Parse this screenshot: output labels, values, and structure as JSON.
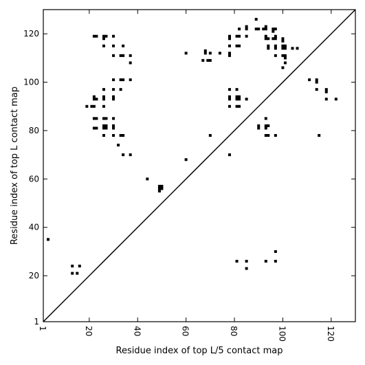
{
  "chart_data": {
    "type": "scatter",
    "title": "",
    "xlabel": "Residue index of top L/5 contact map",
    "ylabel": "Residue index of top L contact map",
    "xlim": [
      1,
      130
    ],
    "ylim": [
      1,
      130
    ],
    "xticks": [
      1,
      20,
      40,
      60,
      80,
      100,
      120
    ],
    "yticks": [
      1,
      20,
      40,
      60,
      80,
      100,
      120
    ],
    "xtick_labels": [
      "1",
      "20",
      "40",
      "60",
      "80",
      "100",
      "120"
    ],
    "ytick_labels": [
      "1",
      "20",
      "40",
      "60",
      "80",
      "100",
      "120"
    ],
    "diagonal": true,
    "marker": "square",
    "color": "#000000",
    "series": [
      {
        "points": [
          [
            13,
            24
          ],
          [
            16,
            24
          ],
          [
            13,
            21
          ],
          [
            15,
            21
          ],
          [
            81,
            26
          ],
          [
            85,
            26
          ],
          [
            93,
            26
          ],
          [
            97,
            26
          ],
          [
            97,
            30
          ],
          [
            85,
            23
          ],
          [
            49,
            57
          ],
          [
            50,
            57
          ],
          [
            49,
            56
          ],
          [
            50,
            56
          ],
          [
            49,
            55
          ],
          [
            44,
            60
          ],
          [
            60,
            68
          ],
          [
            78,
            70
          ],
          [
            34,
            70
          ],
          [
            37,
            70
          ],
          [
            32,
            74
          ],
          [
            33,
            78
          ],
          [
            34,
            78
          ],
          [
            26,
            78
          ],
          [
            30,
            78
          ],
          [
            70,
            78
          ],
          [
            22,
            81
          ],
          [
            23,
            81
          ],
          [
            26,
            81
          ],
          [
            27,
            81
          ],
          [
            30,
            81
          ],
          [
            26,
            82
          ],
          [
            27,
            82
          ],
          [
            30,
            82
          ],
          [
            22,
            85
          ],
          [
            23,
            85
          ],
          [
            26,
            85
          ],
          [
            27,
            85
          ],
          [
            30,
            85
          ],
          [
            19,
            90
          ],
          [
            21,
            90
          ],
          [
            22,
            90
          ],
          [
            26,
            90
          ],
          [
            22,
            93
          ],
          [
            23,
            93
          ],
          [
            26,
            93
          ],
          [
            30,
            93
          ],
          [
            22,
            94
          ],
          [
            26,
            94
          ],
          [
            30,
            94
          ],
          [
            26,
            97
          ],
          [
            30,
            97
          ],
          [
            33,
            97
          ],
          [
            30,
            101
          ],
          [
            33,
            101
          ],
          [
            34,
            101
          ],
          [
            37,
            101
          ],
          [
            37,
            108
          ],
          [
            30,
            111
          ],
          [
            33,
            111
          ],
          [
            34,
            111
          ],
          [
            37,
            111
          ],
          [
            26,
            115
          ],
          [
            30,
            115
          ],
          [
            34,
            115
          ],
          [
            22,
            119
          ],
          [
            23,
            119
          ],
          [
            26,
            119
          ],
          [
            27,
            119
          ],
          [
            30,
            119
          ],
          [
            26,
            118
          ],
          [
            60,
            112
          ],
          [
            68,
            112
          ],
          [
            70,
            112
          ],
          [
            74,
            112
          ],
          [
            68,
            113
          ],
          [
            78,
            111
          ],
          [
            78,
            112
          ],
          [
            67,
            109
          ],
          [
            69,
            109
          ],
          [
            70,
            109
          ],
          [
            78,
            115
          ],
          [
            81,
            115
          ],
          [
            82,
            115
          ],
          [
            78,
            118
          ],
          [
            78,
            119
          ],
          [
            81,
            119
          ],
          [
            82,
            119
          ],
          [
            85,
            119
          ],
          [
            82,
            122
          ],
          [
            85,
            122
          ],
          [
            85,
            123
          ],
          [
            89,
            122
          ],
          [
            90,
            122
          ],
          [
            89,
            126
          ],
          [
            92,
            122
          ],
          [
            93,
            122
          ],
          [
            93,
            123
          ],
          [
            96,
            122
          ],
          [
            97,
            122
          ],
          [
            96,
            121
          ],
          [
            93,
            119
          ],
          [
            93,
            118
          ],
          [
            94,
            118
          ],
          [
            96,
            118
          ],
          [
            97,
            118
          ],
          [
            97,
            119
          ],
          [
            94,
            115
          ],
          [
            94,
            114
          ],
          [
            97,
            115
          ],
          [
            97,
            114
          ],
          [
            100,
            118
          ],
          [
            100,
            117
          ],
          [
            100,
            115
          ],
          [
            101,
            115
          ],
          [
            101,
            114
          ],
          [
            100,
            114
          ],
          [
            104,
            114
          ],
          [
            106,
            114
          ],
          [
            97,
            111
          ],
          [
            100,
            111
          ],
          [
            101,
            111
          ],
          [
            101,
            110
          ],
          [
            101,
            108
          ],
          [
            100,
            106
          ],
          [
            78,
            97
          ],
          [
            81,
            97
          ],
          [
            78,
            94
          ],
          [
            78,
            93
          ],
          [
            81,
            94
          ],
          [
            82,
            94
          ],
          [
            81,
            93
          ],
          [
            82,
            93
          ],
          [
            85,
            93
          ],
          [
            78,
            90
          ],
          [
            81,
            90
          ],
          [
            82,
            90
          ],
          [
            93,
            85
          ],
          [
            90,
            82
          ],
          [
            90,
            81
          ],
          [
            93,
            82
          ],
          [
            94,
            82
          ],
          [
            93,
            81
          ],
          [
            93,
            78
          ],
          [
            94,
            78
          ],
          [
            97,
            78
          ],
          [
            111,
            101
          ],
          [
            114,
            101
          ],
          [
            114,
            100
          ],
          [
            114,
            97
          ],
          [
            118,
            97
          ],
          [
            118,
            96
          ],
          [
            118,
            93
          ],
          [
            122,
            93
          ],
          [
            115,
            78
          ],
          [
            3,
            35
          ]
        ]
      }
    ]
  }
}
